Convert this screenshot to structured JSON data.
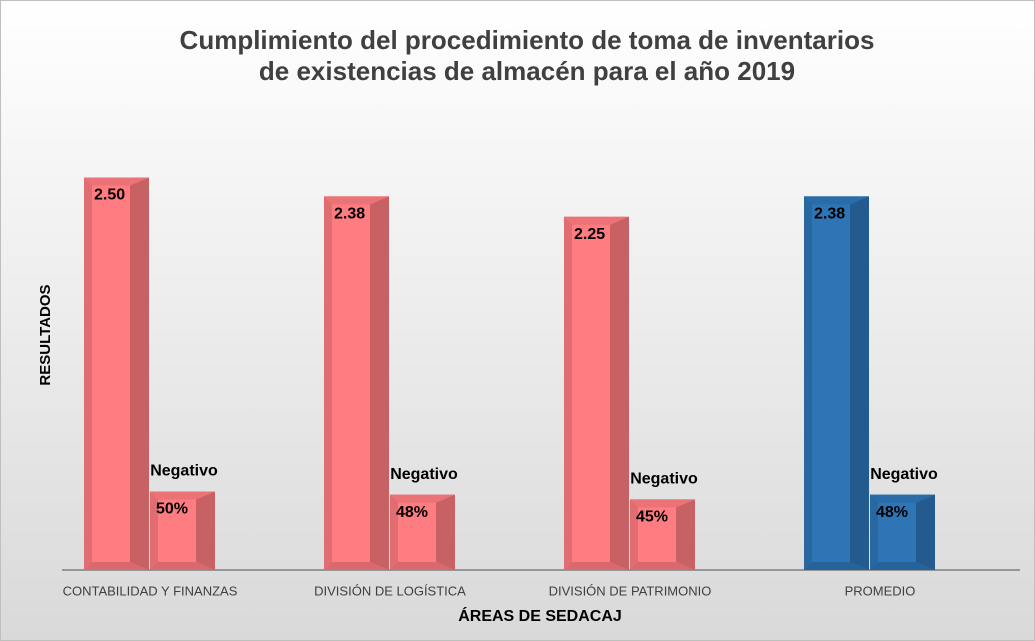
{
  "chart_data": {
    "type": "bar",
    "title": [
      "Cumplimiento del procedimiento de toma de inventarios",
      "de existencias de almacén para el año 2019"
    ],
    "x_label": "ÁREAS DE SEDACAJ",
    "y_label": "RESULTADOS",
    "categories": [
      "CONTABILIDAD Y FINANZAS",
      "DIVISIÓN DE LOGÍSTICA",
      "DIVISIÓN DE PATRIMONIO",
      "PROMEDIO"
    ],
    "ylim": [
      0,
      3
    ],
    "y2lim": [
      0,
      300
    ],
    "series": [
      {
        "colors": [
          "#ff7c80",
          "#ff7c80",
          "#ff7c80",
          "#2e75b6"
        ],
        "values": [
          2.5,
          2.38,
          2.25,
          2.38
        ],
        "value_labels": [
          "2.50",
          "2.38",
          "2.25",
          "2.38"
        ]
      },
      {
        "axis": "y2",
        "colors": [
          "#ff7c80",
          "#ff7c80",
          "#ff7c80",
          "#2e75b6"
        ],
        "values": [
          50,
          48,
          45,
          48
        ],
        "value_labels": [
          "50%",
          "48%",
          "45%",
          "48%"
        ],
        "annotations": [
          "Negativo",
          "Negativo",
          "Negativo",
          "Negativo"
        ]
      }
    ]
  }
}
